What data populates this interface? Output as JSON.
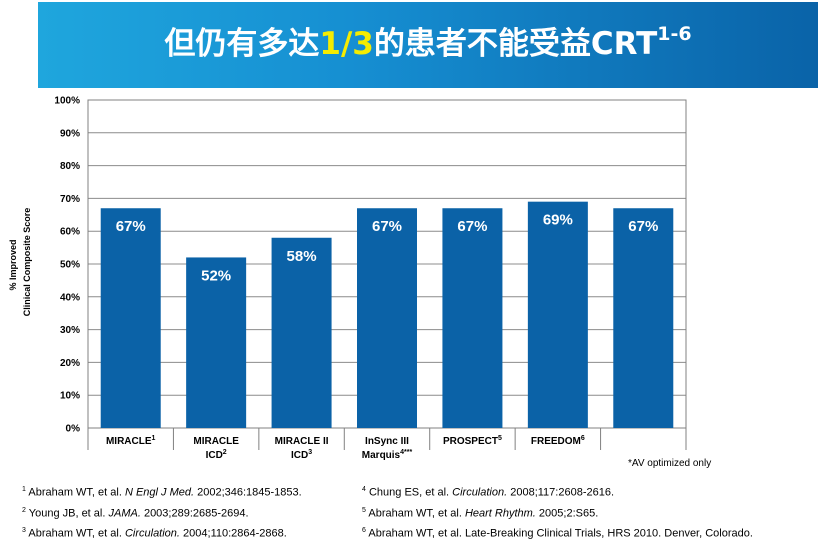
{
  "title": {
    "prefix": "但仍有多达",
    "highlight": "1/3",
    "suffix": "的患者不能受益CRT",
    "superscript": "1-6"
  },
  "colors": {
    "bar": "#0b62a7",
    "banner_start": "#1fa6dd",
    "banner_end": "#0a63a8",
    "highlight": "#f5ec00"
  },
  "chart_data": {
    "type": "bar",
    "ylabel_line1": "% Improved",
    "ylabel_line2": "Clinical Composite Score",
    "ylim": [
      0,
      100
    ],
    "yticks": [
      0,
      10,
      20,
      30,
      40,
      50,
      60,
      70,
      80,
      90,
      100
    ],
    "ytick_labels": [
      "0%",
      "10%",
      "20%",
      "30%",
      "40%",
      "50%",
      "60%",
      "70%",
      "80%",
      "90%",
      "100%"
    ],
    "categories": [
      {
        "line1": "MIRACLE",
        "sup1": "1",
        "line2": "",
        "sup2": ""
      },
      {
        "line1": "MIRACLE",
        "sup1": "",
        "line2": "ICD",
        "sup2": "2"
      },
      {
        "line1": "MIRACLE II",
        "sup1": "",
        "line2": "ICD",
        "sup2": "3"
      },
      {
        "line1": "InSync III",
        "sup1": "",
        "line2": "Marquis",
        "sup2": "4***"
      },
      {
        "line1": "PROSPECT",
        "sup1": "5",
        "line2": "",
        "sup2": ""
      },
      {
        "line1": "FREEDOM",
        "sup1": "6",
        "line2": "",
        "sup2": ""
      },
      {
        "line1": "",
        "sup1": "",
        "line2": "",
        "sup2": ""
      }
    ],
    "values": [
      67,
      52,
      58,
      67,
      67,
      69,
      67
    ],
    "value_labels": [
      "67%",
      "52%",
      "58%",
      "67%",
      "67%",
      "69%",
      "67%"
    ],
    "grid": true
  },
  "footnote": "*AV optimized only",
  "references": [
    {
      "num": "1",
      "pre": "Abraham WT, et al. ",
      "journal": "N Engl J Med.",
      "post": " 2002;346:1845-1853."
    },
    {
      "num": "2",
      "pre": "Young JB, et al. ",
      "journal": "JAMA.",
      "post": " 2003;289:2685-2694."
    },
    {
      "num": "3",
      "pre": "Abraham WT, et al. ",
      "journal": "Circulation.",
      "post": " 2004;110:2864-2868."
    },
    {
      "num": "4",
      "pre": "Chung ES, et al. ",
      "journal": "Circulation.",
      "post": " 2008;117:2608-2616."
    },
    {
      "num": "5",
      "pre": "Abraham WT, et al. ",
      "journal": "Heart Rhythm.",
      "post": " 2005;2:S65."
    },
    {
      "num": "6",
      "pre": "Abraham WT, et al. Late-Breaking Clinical Trials, HRS 2010. Denver, Colorado.",
      "journal": "",
      "post": ""
    }
  ]
}
